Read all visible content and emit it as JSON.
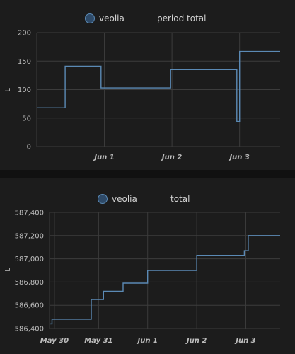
{
  "chart_data": [
    {
      "type": "line",
      "step": true,
      "series_name": "veolia",
      "legend_extra": "period total",
      "ylabel": "L",
      "ylim": [
        0,
        200
      ],
      "yticks": [
        0,
        50,
        100,
        150,
        200
      ],
      "ytick_labels": [
        "0",
        "50",
        "100",
        "150",
        "200"
      ],
      "xlim": [
        0,
        3.6
      ],
      "xticks": [
        1,
        2,
        3
      ],
      "xtick_labels": [
        "Jun 1",
        "Jun 2",
        "Jun 3"
      ],
      "x": [
        0,
        0.42,
        0.42,
        0.95,
        0.95,
        1.98,
        1.98,
        2.96,
        2.96,
        3.0,
        3.0,
        3.6
      ],
      "y": [
        68,
        68,
        141,
        141,
        103,
        103,
        135,
        135,
        44,
        44,
        167,
        167
      ],
      "grid": true,
      "legend_position": "top",
      "color": "#5b8ab5"
    },
    {
      "type": "line",
      "step": true,
      "series_name": "veolia",
      "legend_extra": "total",
      "ylabel": "L",
      "ylim": [
        586400,
        587400
      ],
      "yticks": [
        586400,
        586600,
        586800,
        587000,
        587200,
        587400
      ],
      "ytick_labels": [
        "586,400",
        "586,600",
        "586,800",
        "587,000",
        "587,200",
        "587,400"
      ],
      "xlim": [
        0,
        4.7
      ],
      "xticks": [
        0.1,
        1.0,
        2.0,
        3.0,
        4.0
      ],
      "xtick_labels": [
        "May 30",
        "May 31",
        "Jun 1",
        "Jun 2",
        "Jun 3"
      ],
      "x": [
        0,
        0.05,
        0.05,
        0.85,
        0.85,
        1.1,
        1.1,
        1.5,
        1.5,
        2.0,
        2.0,
        3.0,
        3.0,
        3.97,
        3.97,
        4.05,
        4.05,
        4.7
      ],
      "y": [
        586440,
        586440,
        586480,
        586480,
        586650,
        586650,
        586720,
        586720,
        586790,
        586790,
        586900,
        586900,
        587030,
        587030,
        587070,
        587070,
        587200,
        587200
      ],
      "grid": true,
      "legend_position": "top",
      "color": "#5b8ab5"
    }
  ]
}
